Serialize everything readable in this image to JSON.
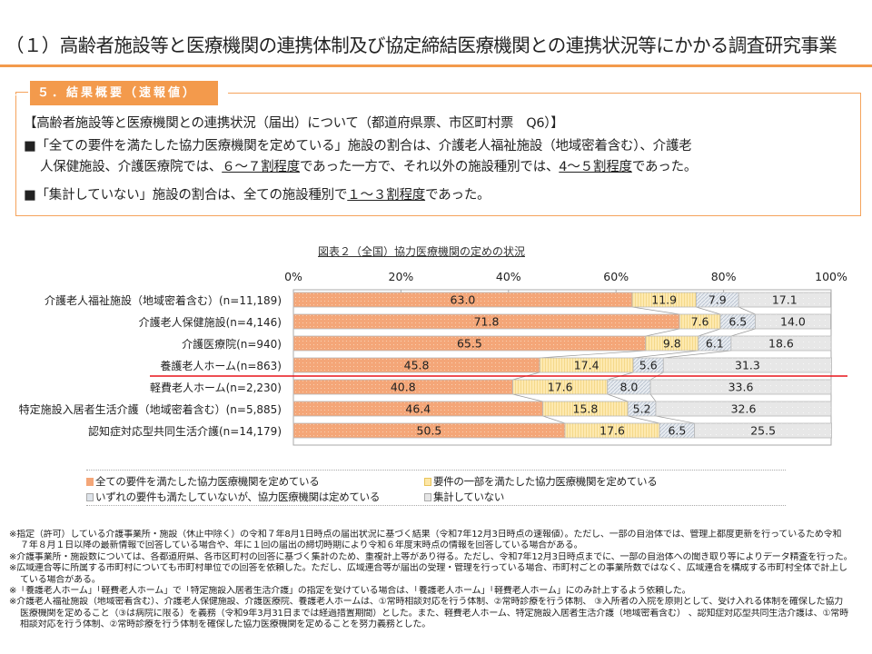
{
  "header": {
    "title": "（１）高齢者施設等と医療機関の連携体制及び協定締結医療機関との連携状況等にかかる調査研究事業"
  },
  "summary": {
    "tag": "５．結果概要（速報値）",
    "heading": "【高齢者施設等と医療機関との連携状況（届出）について（都道府県票、市区町村票　Q6）】",
    "bullet1_a": "■「全ての要件を満たした協力医療機関を定めている」施設の割合は、介護老人福祉施設（地域密着含む）、介護老",
    "bullet1_b": "人保健施設、介護医療院では、",
    "bullet1_c": "６～７割程度",
    "bullet1_d": "であった一方で、それ以外の施設種別では、",
    "bullet1_e": "4～５割程度",
    "bullet1_f": "であった。",
    "bullet2_a": "■「集計していない」施設の割合は、全ての施設種別で",
    "bullet2_b": "１～３割程度",
    "bullet2_c": "であった。"
  },
  "chart_data": {
    "type": "bar",
    "stacked": true,
    "orientation": "horizontal",
    "title": "図表２（全国）協力医療機関の定めの状況",
    "xlim": [
      0,
      100
    ],
    "x_ticks": [
      "0%",
      "20%",
      "40%",
      "60%",
      "80%",
      "100%"
    ],
    "x_tick_values": [
      0,
      20,
      40,
      60,
      80,
      100
    ],
    "categories": [
      "介護老人福祉施設（地域密着含む）(n=11,189)",
      "介護老人保健施設(n=4,146)",
      "介護医療院(n=940)",
      "養護老人ホーム(n=863)",
      "軽費老人ホーム(n=2,230)",
      "特定施設入居者生活介護（地域密着含む）(n=5,885)",
      "認知症対応型共同生活介護(n=14,179)"
    ],
    "series": [
      {
        "name": "全ての要件を満たした協力医療機関を定めている",
        "color": "#f4a678",
        "values": [
          63.0,
          71.8,
          65.5,
          45.8,
          40.8,
          46.4,
          50.5
        ]
      },
      {
        "name": "要件の一部を満たした協力医療機関を定めている",
        "color": "#fde7a8",
        "values": [
          11.9,
          7.6,
          9.8,
          17.4,
          17.6,
          15.8,
          17.6
        ]
      },
      {
        "name": "いずれの要件も満たしていないが、協力医療機関は定めている",
        "color": "#dde3ea",
        "values": [
          7.9,
          6.5,
          6.1,
          5.6,
          8.0,
          5.2,
          6.5
        ]
      },
      {
        "name": "集計していない",
        "color": "#e6e6e6",
        "values": [
          17.1,
          14.0,
          18.6,
          31.3,
          33.6,
          32.6,
          25.5
        ]
      }
    ],
    "labels": [
      [
        "63.0",
        "11.9",
        "7.9",
        "17.1"
      ],
      [
        "71.8",
        "7.6",
        "6.5",
        "14.0"
      ],
      [
        "65.5",
        "9.8",
        "6.1",
        "18.6"
      ],
      [
        "45.8",
        "17.4",
        "5.6",
        "31.3"
      ],
      [
        "40.8",
        "17.6",
        "8.0",
        "33.6"
      ],
      [
        "46.4",
        "15.8",
        "5.2",
        "32.6"
      ],
      [
        "50.5",
        "17.6",
        "6.5",
        "25.5"
      ]
    ],
    "divider_after_category": 3,
    "divider_color": "#e8141a",
    "legend_position": "bottom"
  },
  "notes": [
    "※指定（許可）している介護事業所・施設（休止中除く）の令和７年8月1日時点の届出状況に基づく結果（令和7年12月3日時点の速報値）。ただし、一部の自治体では、管理上都度更新を行っているため令和",
    "７年８月１日以降の最新情報で回答している場合や、年に１回の届出の締切時期により令和６年度末時点の情報を回答している場合がある。",
    "※介護事業所・施設数については、各都道府県、各市区町村の回答に基づく集計のため、重複計上等があり得る。ただし、令和7年12月3日時点までに、一部の自治体への聞き取り等によりデータ精査を行った。",
    "※広域連合等に所属する市町村についても市町村単位での回答を依頼した。ただし、広域連合等が届出の受理・管理を行っている場合、市町村ごとの事業所数ではなく、広域連合を構成する市町村全体で計上し",
    "ている場合がある。",
    "※「養護老人ホーム」「軽費老人ホーム」で「特定施設入居者生活介護」の指定を受けている場合は、「養護老人ホーム」「軽費老人ホーム」にのみ計上するよう依頼した。",
    "※介護老人福祉施設（地域密着含む）、介護老人保健施設、介護医療院、養護老人ホームは、①常時相談対応を行う体制、②常時診療を行う体制、 ③入所者の入院を原則として、受け入れる体制を確保した協力",
    "医療機関を定めること（③は病院に限る）を義務（令和9年3月31日までは経過措置期間）とした。また、軽費老人ホーム、特定施設入居者生活介護（地域密着含む） 、認知症対応型共同生活介護は、①常時",
    "相談対応を行う体制、②常時診療を行う体制を確保した協力医療機関を定めることを努力義務とした。"
  ],
  "notes_indent": [
    false,
    true,
    false,
    false,
    true,
    false,
    false,
    true,
    true
  ]
}
